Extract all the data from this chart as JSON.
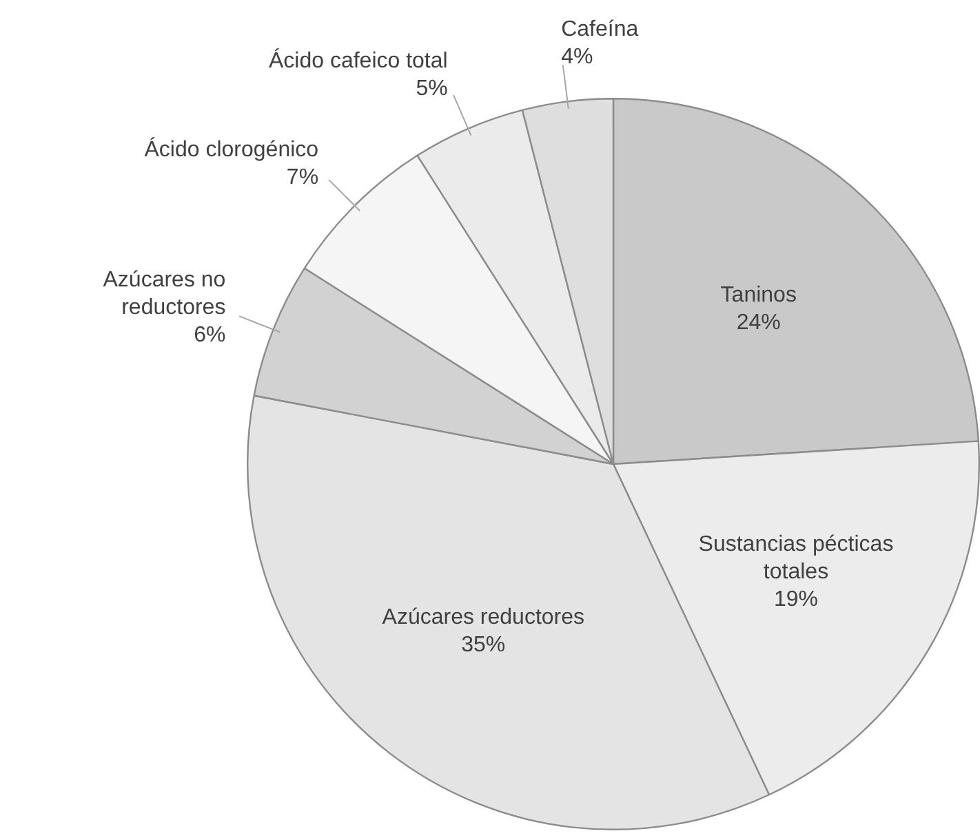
{
  "chart_data": {
    "type": "pie",
    "categories": [
      "Taninos",
      "Sustancias pécticas totales",
      "Azúcares reductores",
      "Azúcares no reductores",
      "Ácido clorogénico",
      "Ácido cafeico total",
      "Cafeína"
    ],
    "values": [
      24,
      19,
      35,
      6,
      7,
      5,
      4
    ],
    "colors": [
      "#c9c9c9",
      "#ececec",
      "#e4e4e4",
      "#d2d2d2",
      "#f5f5f5",
      "#ebebeb",
      "#dedede"
    ],
    "value_labels": [
      "24%",
      "19%",
      "35%",
      "6%",
      "7%",
      "5%",
      "4%"
    ],
    "legend": false
  }
}
